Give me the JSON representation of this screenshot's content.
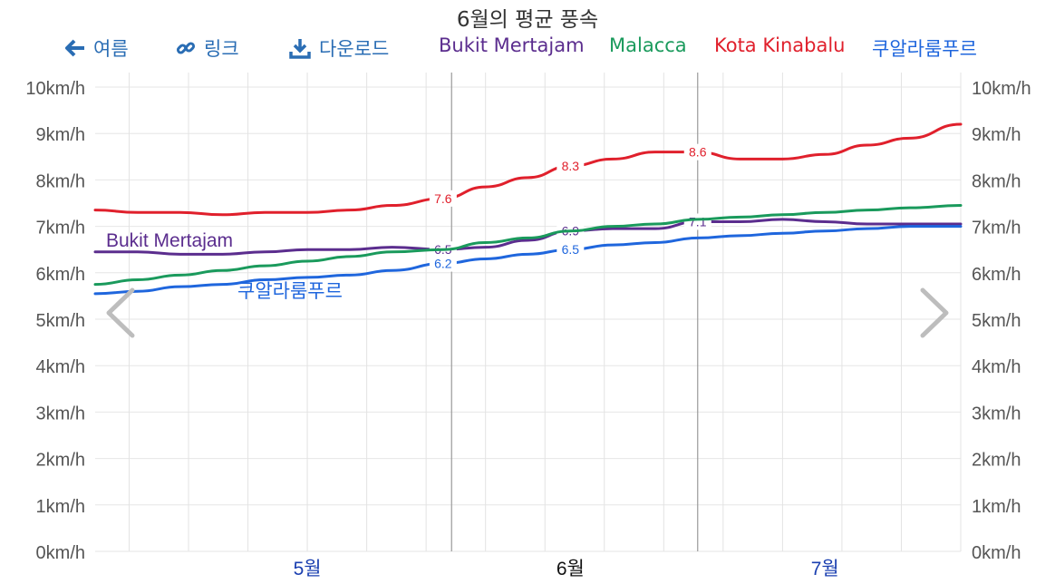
{
  "title": "6월의 평균 풍속",
  "toolbar": {
    "back_label": "여름",
    "link_label": "링크",
    "download_label": "다운로드"
  },
  "colors": {
    "Bukit Mertajam": "#5b2d8e",
    "Malacca": "#1a9a5c",
    "Kota Kinabalu": "#e0202c",
    "쿠알라룸푸르": "#1f66dd",
    "month_label": "#1a3fb0",
    "toolbar": "#2a6db4"
  },
  "chart_data": {
    "type": "line",
    "title": "6월의 평균 풍속",
    "unit": "km/h",
    "ylim": [
      0,
      10
    ],
    "y_ticks": [
      "0km/h",
      "1km/h",
      "2km/h",
      "3km/h",
      "4km/h",
      "5km/h",
      "6km/h",
      "7km/h",
      "8km/h",
      "9km/h",
      "10km/h"
    ],
    "x_range": [
      "04-20",
      "07-31"
    ],
    "x_ticks": [
      {
        "label": "5월",
        "date": "05-15",
        "active": false
      },
      {
        "label": "6월",
        "date": "06-15",
        "active": true
      },
      {
        "label": "7월",
        "date": "07-15",
        "active": false
      }
    ],
    "highlight_range": [
      "06-01",
      "06-30"
    ],
    "grid": true,
    "legend_position": "top",
    "series": [
      {
        "name": "Bukit Mertajam",
        "x": [
          "04-20",
          "04-25",
          "04-30",
          "05-05",
          "05-10",
          "05-15",
          "05-20",
          "05-25",
          "05-31",
          "06-05",
          "06-10",
          "06-15",
          "06-20",
          "06-25",
          "06-30",
          "07-05",
          "07-10",
          "07-15",
          "07-20",
          "07-25",
          "07-31"
        ],
        "values": [
          6.45,
          6.45,
          6.4,
          6.4,
          6.45,
          6.5,
          6.5,
          6.55,
          6.5,
          6.55,
          6.7,
          6.9,
          6.95,
          6.95,
          7.1,
          7.1,
          7.15,
          7.1,
          7.05,
          7.05,
          7.05
        ],
        "labels": [
          {
            "date": "05-31",
            "text": "6.5"
          },
          {
            "date": "06-15",
            "text": "6.9"
          },
          {
            "date": "06-30",
            "text": "7.1"
          }
        ]
      },
      {
        "name": "Malacca",
        "x": [
          "04-20",
          "04-25",
          "04-30",
          "05-05",
          "05-10",
          "05-15",
          "05-20",
          "05-25",
          "05-31",
          "06-05",
          "06-10",
          "06-15",
          "06-20",
          "06-25",
          "06-30",
          "07-05",
          "07-10",
          "07-15",
          "07-20",
          "07-25",
          "07-31"
        ],
        "values": [
          5.75,
          5.85,
          5.95,
          6.05,
          6.15,
          6.25,
          6.35,
          6.45,
          6.5,
          6.65,
          6.75,
          6.9,
          7.0,
          7.05,
          7.15,
          7.2,
          7.25,
          7.3,
          7.35,
          7.4,
          7.45
        ],
        "labels": []
      },
      {
        "name": "Kota Kinabalu",
        "x": [
          "04-20",
          "04-25",
          "04-30",
          "05-05",
          "05-10",
          "05-15",
          "05-20",
          "05-25",
          "05-31",
          "06-05",
          "06-10",
          "06-15",
          "06-20",
          "06-25",
          "06-30",
          "07-05",
          "07-10",
          "07-15",
          "07-20",
          "07-25",
          "07-31"
        ],
        "values": [
          7.35,
          7.3,
          7.3,
          7.25,
          7.3,
          7.3,
          7.35,
          7.45,
          7.6,
          7.85,
          8.05,
          8.3,
          8.45,
          8.6,
          8.6,
          8.45,
          8.45,
          8.55,
          8.75,
          8.9,
          9.2
        ],
        "labels": [
          {
            "date": "05-31",
            "text": "7.6"
          },
          {
            "date": "06-15",
            "text": "8.3"
          },
          {
            "date": "06-30",
            "text": "8.6"
          }
        ]
      },
      {
        "name": "쿠알라룸푸르",
        "x": [
          "04-20",
          "04-25",
          "04-30",
          "05-05",
          "05-10",
          "05-15",
          "05-20",
          "05-25",
          "05-31",
          "06-05",
          "06-10",
          "06-15",
          "06-20",
          "06-25",
          "06-30",
          "07-05",
          "07-10",
          "07-15",
          "07-20",
          "07-25",
          "07-31"
        ],
        "values": [
          5.55,
          5.6,
          5.7,
          5.75,
          5.85,
          5.9,
          5.95,
          6.05,
          6.2,
          6.3,
          6.4,
          6.5,
          6.6,
          6.65,
          6.75,
          6.8,
          6.85,
          6.9,
          6.95,
          7.0,
          7.0
        ],
        "labels": [
          {
            "date": "05-31",
            "text": "6.2"
          },
          {
            "date": "06-15",
            "text": "6.5"
          }
        ]
      }
    ],
    "inline_series_labels": [
      {
        "series": "Bukit Mertajam",
        "text": "Bukit Mertajam"
      },
      {
        "series": "쿠알라룸푸르",
        "text": "쿠알라룸푸르"
      }
    ]
  }
}
